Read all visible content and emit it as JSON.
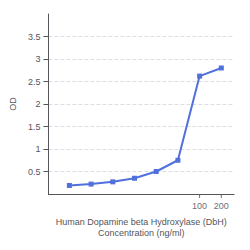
{
  "chart_data": {
    "type": "line",
    "x": [
      1.5625,
      3.125,
      6.25,
      12.5,
      25,
      50,
      100,
      200
    ],
    "values": [
      0.19,
      0.22,
      0.27,
      0.35,
      0.5,
      0.75,
      2.62,
      2.8
    ],
    "xlabel": "Human Dopamine beta Hydroxylase (DbH)\nConcentration (ng/ml)",
    "ylabel": "OD",
    "log": "x",
    "xlim": [
      0.8,
      300
    ],
    "xticks": [
      100,
      200
    ],
    "ylim": [
      0,
      4.0
    ],
    "yticks": [
      0.5,
      1.0,
      1.5,
      2.0,
      2.5,
      3.0,
      3.5
    ],
    "grid": true,
    "marker": "square"
  }
}
